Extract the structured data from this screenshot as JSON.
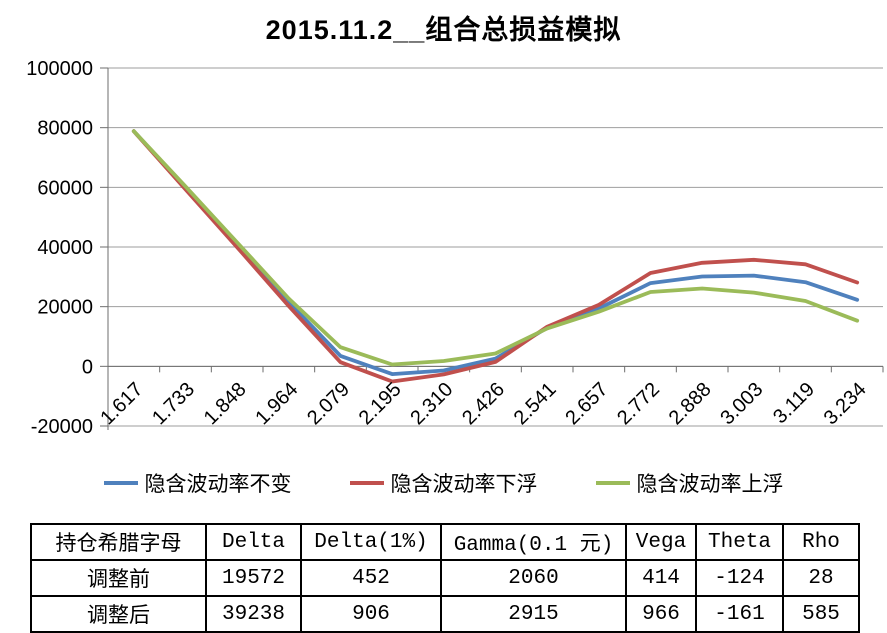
{
  "chart_data": {
    "type": "line",
    "title": "2015.11.2__组合总损益模拟",
    "x_labels": [
      "1.617",
      "1.733",
      "1.848",
      "1.964",
      "2.079",
      "2.195",
      "2.310",
      "2.426",
      "2.541",
      "2.657",
      "2.772",
      "2.888",
      "3.003",
      "3.119",
      "3.234"
    ],
    "series": [
      {
        "name": "隐含波动率不变",
        "color": "#4F81BD",
        "values": [
          78800,
          59800,
          40700,
          21500,
          3500,
          -2600,
          -1400,
          2600,
          12900,
          19400,
          27900,
          30100,
          30400,
          28200,
          22300
        ]
      },
      {
        "name": "隐含波动率下浮",
        "color": "#C0504D",
        "values": [
          78800,
          59300,
          39900,
          20200,
          1400,
          -5100,
          -2700,
          1500,
          13300,
          20600,
          31300,
          34700,
          35700,
          34200,
          28100
        ]
      },
      {
        "name": "隐含波动率上浮",
        "color": "#9BBB59",
        "values": [
          78800,
          60300,
          41500,
          22700,
          6400,
          600,
          1800,
          4300,
          12700,
          18300,
          24900,
          26100,
          24700,
          21900,
          15300
        ]
      }
    ],
    "ylim": [
      -20000,
      100000
    ],
    "y_ticks": [
      100000,
      80000,
      60000,
      40000,
      20000,
      0,
      -20000
    ],
    "y_tick_labels": [
      "100000",
      "80000",
      "60000",
      "40000",
      "20000",
      "0",
      "-20000"
    ],
    "grid": true,
    "legend_position": "bottom",
    "colors": {
      "gridline": "#9e9e9e",
      "axis": "#6e6e6e"
    }
  },
  "table": {
    "headers": [
      "持仓希腊字母",
      "Delta",
      "Delta(1%)",
      "Gamma(0.1 元)",
      "Vega",
      "Theta",
      "Rho"
    ],
    "rows": [
      {
        "label": "调整前",
        "values": [
          "19572",
          "452",
          "2060",
          "414",
          "-124",
          "28"
        ]
      },
      {
        "label": "调整后",
        "values": [
          "39238",
          "906",
          "2915",
          "966",
          "-161",
          "585"
        ]
      }
    ]
  }
}
